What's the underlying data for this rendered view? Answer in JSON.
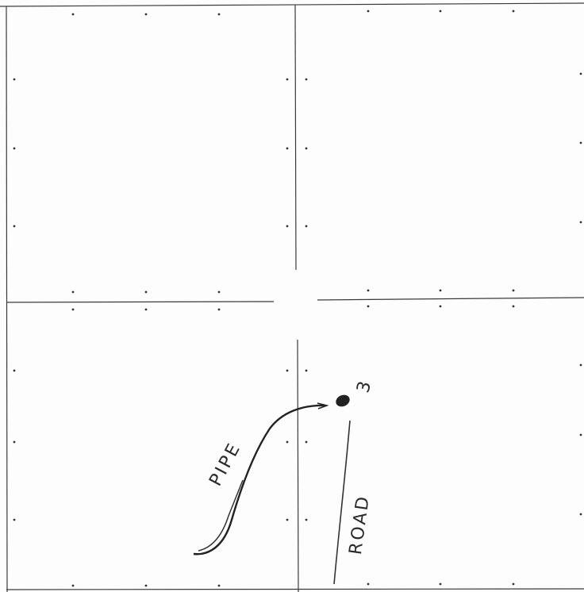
{
  "annotations": {
    "pipe": "PIPE",
    "road": "ROAD",
    "point": "3"
  }
}
